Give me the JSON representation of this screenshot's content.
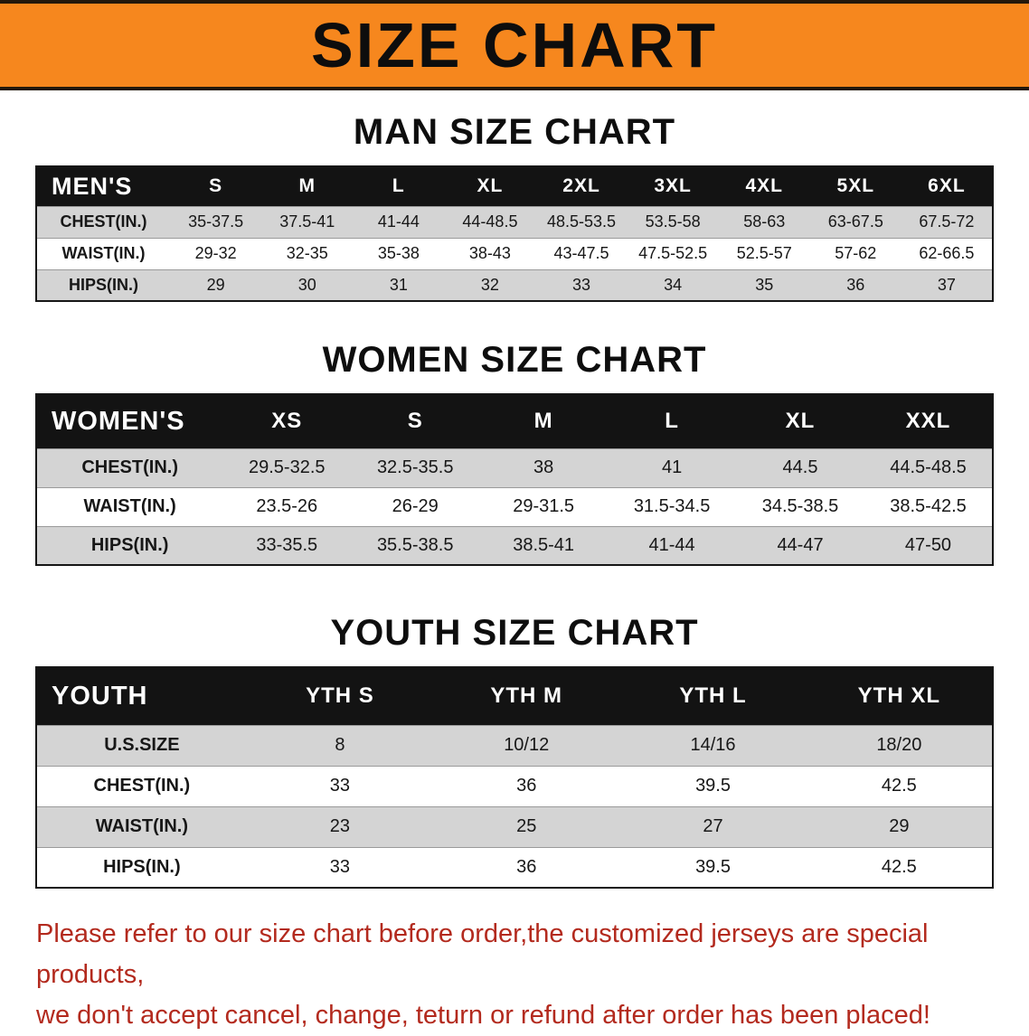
{
  "banner": {
    "title": "SIZE CHART"
  },
  "colors": {
    "banner_bg": "#f6871e",
    "header_row_bg": "#131313",
    "alt_row_bg": "#d4d4d4",
    "warning_text": "#b32a1e"
  },
  "men": {
    "heading": "MAN SIZE CHART",
    "header": [
      "MEN'S",
      "S",
      "M",
      "L",
      "XL",
      "2XL",
      "3XL",
      "4XL",
      "5XL",
      "6XL"
    ],
    "rows": [
      [
        "CHEST(IN.)",
        "35-37.5",
        "37.5-41",
        "41-44",
        "44-48.5",
        "48.5-53.5",
        "53.5-58",
        "58-63",
        "63-67.5",
        "67.5-72"
      ],
      [
        "WAIST(IN.)",
        "29-32",
        "32-35",
        "35-38",
        "38-43",
        "43-47.5",
        "47.5-52.5",
        "52.5-57",
        "57-62",
        "62-66.5"
      ],
      [
        "HIPS(IN.)",
        "29",
        "30",
        "31",
        "32",
        "33",
        "34",
        "35",
        "36",
        "37"
      ]
    ]
  },
  "women": {
    "heading": "WOMEN SIZE CHART",
    "header": [
      "WOMEN'S",
      "XS",
      "S",
      "M",
      "L",
      "XL",
      "XXL"
    ],
    "rows": [
      [
        "CHEST(IN.)",
        "29.5-32.5",
        "32.5-35.5",
        "38",
        "41",
        "44.5",
        "44.5-48.5"
      ],
      [
        "WAIST(IN.)",
        "23.5-26",
        "26-29",
        "29-31.5",
        "31.5-34.5",
        "34.5-38.5",
        "38.5-42.5"
      ],
      [
        "HIPS(IN.)",
        "33-35.5",
        "35.5-38.5",
        "38.5-41",
        "41-44",
        "44-47",
        "47-50"
      ]
    ]
  },
  "youth": {
    "heading": "YOUTH SIZE CHART",
    "header": [
      "YOUTH",
      "YTH S",
      "YTH M",
      "YTH L",
      "YTH XL"
    ],
    "rows": [
      [
        "U.S.SIZE",
        "8",
        "10/12",
        "14/16",
        "18/20"
      ],
      [
        "CHEST(IN.)",
        "33",
        "36",
        "39.5",
        "42.5"
      ],
      [
        "WAIST(IN.)",
        "23",
        "25",
        "27",
        "29"
      ],
      [
        "HIPS(IN.)",
        "33",
        "36",
        "39.5",
        "42.5"
      ]
    ]
  },
  "footer": {
    "line1": "Please refer to our size chart before order,the customized jerseys are special products,",
    "line2": "we don't accept cancel, change, teturn or refund after order has been placed!"
  }
}
